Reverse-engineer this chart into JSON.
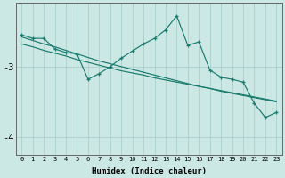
{
  "xlabel": "Humidex (Indice chaleur)",
  "bg_color": "#cce8e4",
  "line_color": "#1a7a6e",
  "grid_color": "#aacfcb",
  "x": [
    0,
    1,
    2,
    3,
    4,
    5,
    6,
    7,
    8,
    9,
    10,
    11,
    12,
    13,
    14,
    15,
    16,
    17,
    18,
    19,
    20,
    21,
    22,
    23
  ],
  "y_main": [
    -2.55,
    -2.6,
    -2.6,
    -2.75,
    -2.8,
    -2.82,
    -3.18,
    -3.1,
    -3.0,
    -2.88,
    -2.78,
    -2.68,
    -2.6,
    -2.48,
    -2.28,
    -2.7,
    -2.65,
    -3.05,
    -3.15,
    -3.18,
    -3.22,
    -3.52,
    -3.72,
    -3.65
  ],
  "y_trend1": [
    -2.58,
    -2.63,
    -2.68,
    -2.72,
    -2.77,
    -2.82,
    -2.87,
    -2.92,
    -2.96,
    -3.0,
    -3.04,
    -3.08,
    -3.12,
    -3.16,
    -3.2,
    -3.24,
    -3.28,
    -3.31,
    -3.35,
    -3.38,
    -3.41,
    -3.44,
    -3.47,
    -3.5
  ],
  "y_trend2": [
    -2.68,
    -2.72,
    -2.77,
    -2.81,
    -2.85,
    -2.9,
    -2.94,
    -2.98,
    -3.02,
    -3.06,
    -3.09,
    -3.12,
    -3.16,
    -3.19,
    -3.22,
    -3.25,
    -3.28,
    -3.31,
    -3.34,
    -3.37,
    -3.4,
    -3.43,
    -3.46,
    -3.49
  ],
  "ylim": [
    -4.25,
    -2.1
  ],
  "xlim": [
    -0.5,
    23.5
  ],
  "yticks": [
    -4.0,
    -3.0
  ],
  "ytick_labels": [
    "-4",
    "-3"
  ],
  "xticks": [
    0,
    1,
    2,
    3,
    4,
    5,
    6,
    7,
    8,
    9,
    10,
    11,
    12,
    13,
    14,
    15,
    16,
    17,
    18,
    19,
    20,
    21,
    22,
    23
  ],
  "figsize": [
    3.2,
    2.0
  ],
  "dpi": 100
}
